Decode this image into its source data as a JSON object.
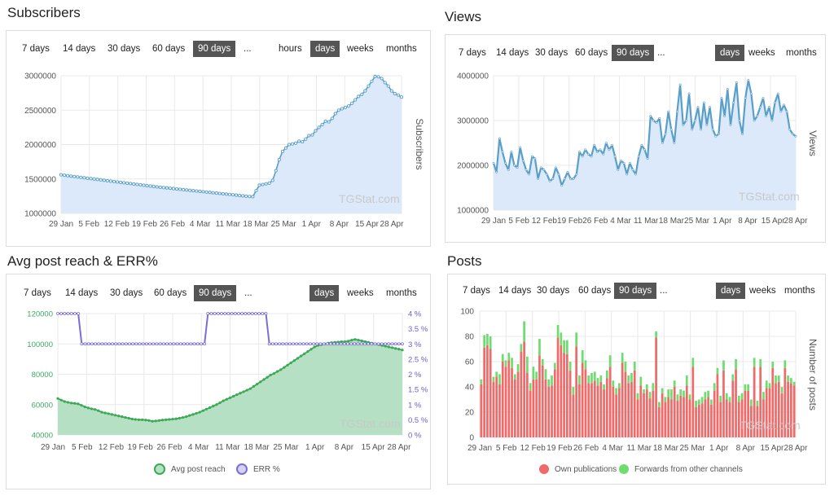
{
  "titles": {
    "subscribers": "Subscribers",
    "views": "Views",
    "reach": "Avg post reach & ERR%",
    "posts": "Posts"
  },
  "periods": [
    "7 days",
    "14 days",
    "30 days",
    "60 days",
    "90 days",
    "..."
  ],
  "active_period": "90 days",
  "granularity_subscribers": [
    "hours",
    "days",
    "weeks",
    "months"
  ],
  "granularity": [
    "days",
    "weeks",
    "months"
  ],
  "active_granularity": "days",
  "watermark": "TGStat.com",
  "colors": {
    "subscribers_line": "#5a9fc8",
    "subscribers_fill": "#dbe9fb",
    "views_line": "#5a9fc8",
    "views_fill": "#dbe9fb",
    "reach_line": "#3caa55",
    "reach_fill": "#b5e0c4",
    "err_line": "#7a6ed6",
    "own": "#f06a6a",
    "forwards": "#6fdc6f"
  },
  "x_ticks": [
    "29 Jan",
    "5 Feb",
    "12 Feb",
    "19 Feb",
    "26 Feb",
    "4 Mar",
    "11 Mar",
    "18 Mar",
    "25 Mar",
    "1 Apr",
    "8 Apr",
    "15 Apr",
    "28 Apr"
  ],
  "chart_data": [
    {
      "id": "subscribers",
      "type": "area",
      "title": "Subscribers",
      "ylabel": "Subscribers",
      "ylim": [
        1000000,
        3000000
      ],
      "y_ticks": [
        "3000000",
        "2500000",
        "2000000",
        "1500000",
        "1000000"
      ],
      "grid": true,
      "series": [
        {
          "name": "Subscribers",
          "values": [
            1560000,
            1554000,
            1548000,
            1541000,
            1535000,
            1529000,
            1523000,
            1517000,
            1511000,
            1505000,
            1499000,
            1493000,
            1487000,
            1481000,
            1475000,
            1469000,
            1463000,
            1457000,
            1451000,
            1445000,
            1439000,
            1433000,
            1427000,
            1421000,
            1415000,
            1409000,
            1403000,
            1397000,
            1391000,
            1385000,
            1380000,
            1375000,
            1370000,
            1365000,
            1360000,
            1355000,
            1350000,
            1345000,
            1340000,
            1335000,
            1330000,
            1325000,
            1320000,
            1315000,
            1310000,
            1305000,
            1300000,
            1295000,
            1290000,
            1285000,
            1280000,
            1275000,
            1270000,
            1265000,
            1260000,
            1255000,
            1250000,
            1245000,
            1243000,
            1330000,
            1410000,
            1420000,
            1430000,
            1440000,
            1480000,
            1620000,
            1780000,
            1900000,
            1950000,
            2000000,
            2010000,
            2020000,
            2050000,
            2040000,
            2080000,
            2130000,
            2140000,
            2200000,
            2250000,
            2290000,
            2340000,
            2330000,
            2380000,
            2450000,
            2500000,
            2520000,
            2540000,
            2560000,
            2600000,
            2650000,
            2700000,
            2730000,
            2780000,
            2850000,
            2920000,
            2990000,
            2985000,
            2960000,
            2900000,
            2850000,
            2780000,
            2740000,
            2720000,
            2690000
          ]
        }
      ]
    },
    {
      "id": "views",
      "type": "line",
      "title": "Views",
      "ylabel": "Views",
      "ylim": [
        1000000,
        4000000
      ],
      "y_ticks": [
        "4000000",
        "3000000",
        "2000000",
        "1000000"
      ],
      "grid": true,
      "series": [
        {
          "name": "Views",
          "values": [
            2050000,
            1850000,
            2600000,
            2300000,
            2050000,
            1900000,
            2300000,
            2000000,
            1950000,
            2400000,
            2100000,
            1900000,
            1800000,
            2200000,
            2150000,
            1700000,
            1950000,
            1900000,
            1800000,
            1650000,
            1700000,
            1950000,
            1800000,
            1550000,
            1700000,
            1850000,
            1700000,
            1700000,
            1800000,
            2300000,
            2200000,
            2350000,
            2250000,
            2200000,
            2450000,
            2300000,
            2350000,
            2250000,
            2500000,
            2350000,
            2450000,
            2200000,
            1900000,
            2100000,
            2050000,
            1800000,
            2050000,
            1900000,
            1800000,
            2200000,
            2450000,
            2350000,
            2150000,
            3100000,
            3000000,
            2950000,
            3050000,
            2500000,
            2700000,
            3200000,
            2800000,
            2500000,
            3200000,
            3800000,
            2900000,
            3000000,
            3600000,
            2800000,
            3000000,
            3300000,
            2800000,
            3400000,
            2900000,
            3300000,
            2800000,
            2650000,
            2700000,
            3500000,
            3100000,
            3700000,
            2900000,
            3400000,
            3850000,
            3000000,
            2700000,
            3500000,
            3900000,
            3600000,
            3000000,
            3100000,
            3300000,
            3500000,
            3100000,
            3300000,
            3000000,
            3400000,
            3600000,
            3200000,
            3350000,
            3200000,
            2800000,
            2700000,
            2650000
          ]
        }
      ]
    },
    {
      "id": "reach",
      "type": "area",
      "title": "Avg post reach & ERR%",
      "ylim": [
        40000,
        120000
      ],
      "y_ticks": [
        "120000",
        "100000",
        "80000",
        "60000",
        "40000"
      ],
      "y2lim": [
        0,
        4
      ],
      "y2_ticks": [
        "4 %",
        "3.5 %",
        "3 %",
        "2.5 %",
        "2 %",
        "1.5 %",
        "1 %",
        "0.5 %",
        "0 %"
      ],
      "legend": "bottom",
      "grid": true,
      "series": [
        {
          "name": "Avg post reach",
          "axis": "left",
          "values": [
            64000,
            63000,
            62000,
            61500,
            61000,
            60800,
            60500,
            59500,
            58500,
            57800,
            57200,
            56800,
            56000,
            55000,
            54500,
            54000,
            53500,
            53000,
            52500,
            52000,
            51500,
            51000,
            50500,
            50200,
            50000,
            50000,
            49800,
            49500,
            49000,
            49200,
            49500,
            49800,
            50000,
            50200,
            50400,
            50600,
            51000,
            51500,
            52000,
            52800,
            53500,
            54200,
            55000,
            56000,
            57000,
            58000,
            59000,
            60000,
            61200,
            62500,
            63500,
            64500,
            65500,
            66500,
            67500,
            68500,
            69500,
            70500,
            72000,
            73500,
            75000,
            76500,
            78000,
            79500,
            80500,
            81800,
            83000,
            84500,
            86000,
            87500,
            89000,
            90500,
            92000,
            93500,
            95000,
            96500,
            98000,
            99000,
            99500,
            100000,
            100500,
            100800,
            101000,
            101200,
            101500,
            101500,
            101800,
            102500,
            103000,
            102500,
            102000,
            101500,
            101000,
            100500,
            100000,
            99500,
            99000,
            98500,
            98000,
            97500,
            97000,
            96500,
            96000
          ]
        },
        {
          "name": "ERR %",
          "axis": "right",
          "values": [
            4,
            4,
            4,
            4,
            4,
            4,
            4,
            3,
            3,
            3,
            3,
            3,
            3,
            3,
            3,
            3,
            3,
            3,
            3,
            3,
            3,
            3,
            3,
            3,
            3,
            3,
            3,
            3,
            3,
            3,
            3,
            3,
            3,
            3,
            3,
            3,
            3,
            3,
            3,
            3,
            3,
            3,
            3,
            3,
            4,
            4,
            4,
            4,
            4,
            4,
            4,
            4,
            4,
            4,
            4,
            4,
            4,
            4,
            4,
            4,
            4,
            4,
            3,
            3,
            3,
            3,
            3,
            3,
            3,
            3,
            3,
            3,
            3,
            3,
            3,
            3,
            3,
            3,
            3,
            3,
            3,
            3,
            3,
            3,
            3,
            3,
            3,
            3,
            3,
            3,
            3,
            3,
            3,
            3,
            3,
            3,
            3,
            3,
            3,
            3,
            3,
            3
          ]
        }
      ]
    },
    {
      "id": "posts",
      "type": "bar",
      "title": "Posts",
      "ylabel": "Number of posts",
      "ylim": [
        0,
        100
      ],
      "y_ticks": [
        "100",
        "80",
        "60",
        "40",
        "20",
        "0"
      ],
      "legend": "bottom",
      "grid": true,
      "stacked": true,
      "series": [
        {
          "name": "Own publications",
          "values": [
            42,
            71,
            73,
            70,
            44,
            48,
            42,
            60,
            56,
            61,
            55,
            46,
            52,
            68,
            76,
            51,
            37,
            46,
            46,
            65,
            57,
            46,
            40,
            41,
            54,
            79,
            73,
            67,
            66,
            53,
            34,
            72,
            42,
            59,
            54,
            43,
            43,
            45,
            41,
            44,
            38,
            47,
            56,
            40,
            34,
            39,
            59,
            52,
            43,
            44,
            53,
            30,
            41,
            35,
            38,
            31,
            37,
            79,
            24,
            35,
            28,
            32,
            30,
            40,
            29,
            33,
            32,
            41,
            30,
            56,
            24,
            26,
            27,
            30,
            32,
            26,
            37,
            50,
            28,
            53,
            30,
            28,
            45,
            54,
            28,
            30,
            37,
            37,
            25,
            56,
            25,
            56,
            30,
            39,
            39,
            55,
            43,
            44,
            35,
            55,
            44,
            43,
            41
          ]
        },
        {
          "name": "Forwards from other channels",
          "values": [
            4,
            10,
            9,
            10,
            4,
            4,
            8,
            6,
            5,
            6,
            8,
            4,
            6,
            6,
            16,
            13,
            6,
            10,
            6,
            13,
            5,
            8,
            6,
            8,
            5,
            10,
            10,
            10,
            11,
            7,
            6,
            11,
            7,
            10,
            7,
            6,
            8,
            7,
            6,
            5,
            4,
            6,
            9,
            5,
            5,
            4,
            8,
            8,
            6,
            7,
            7,
            5,
            7,
            3,
            4,
            5,
            6,
            5,
            4,
            4,
            4,
            6,
            8,
            5,
            5,
            5,
            5,
            8,
            4,
            7,
            5,
            4,
            5,
            6,
            5,
            4,
            6,
            5,
            5,
            8,
            5,
            4,
            5,
            8,
            5,
            5,
            5,
            5,
            5,
            7,
            4,
            6,
            6,
            6,
            4,
            5,
            6,
            5,
            5,
            6,
            5,
            4,
            3
          ]
        }
      ]
    }
  ]
}
